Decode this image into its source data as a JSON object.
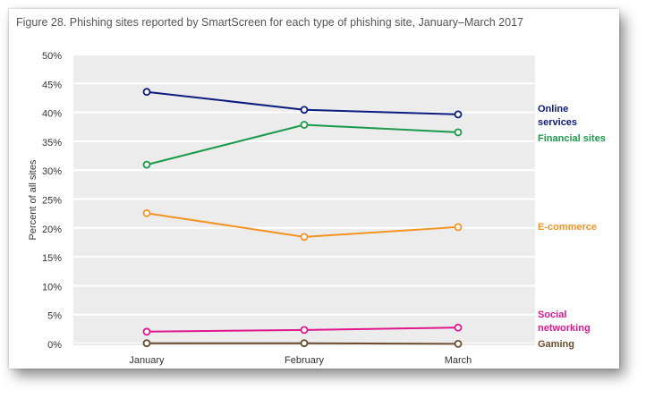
{
  "title": "Figure 28. Phishing sites reported by SmartScreen for each type of phishing site, January–March 2017",
  "chart_data": {
    "type": "line",
    "categories": [
      "January",
      "February",
      "March"
    ],
    "ylabel": "Percent of all sites",
    "xlabel": "",
    "ylim": [
      0,
      50
    ],
    "y_ticks": [
      "0%",
      "5%",
      "10%",
      "15%",
      "20%",
      "25%",
      "30%",
      "35%",
      "40%",
      "45%",
      "50%"
    ],
    "grid": "horizontal bands",
    "legend": "right, labels at line ends",
    "series": [
      {
        "name": "Online services",
        "name_lines": [
          "Online",
          "services"
        ],
        "color": "#0b1b7e",
        "values": [
          43.7,
          40.6,
          39.8
        ]
      },
      {
        "name": "Financial sites",
        "name_lines": [
          "Financial sites"
        ],
        "color": "#1a9a4a",
        "values": [
          31.1,
          38.0,
          36.7
        ]
      },
      {
        "name": "E-commerce",
        "name_lines": [
          "E-commerce"
        ],
        "color": "#f39322",
        "values": [
          22.7,
          18.6,
          20.3
        ]
      },
      {
        "name": "Social networking",
        "name_lines": [
          "Social",
          "networking"
        ],
        "color": "#e0168f",
        "values": [
          2.2,
          2.5,
          2.9
        ]
      },
      {
        "name": "Gaming",
        "name_lines": [
          "Gaming"
        ],
        "color": "#6b4c2f",
        "values": [
          0.2,
          0.2,
          0.1
        ]
      }
    ]
  }
}
